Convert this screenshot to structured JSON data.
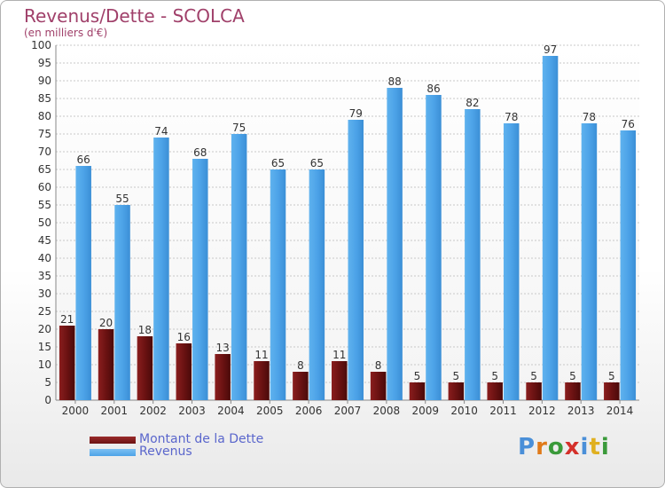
{
  "title": "Revenus/Dette - SCOLCA",
  "subtitle": "(en milliers d'€)",
  "logo_text": "Proxiti",
  "colors": {
    "dette": "#6b1212",
    "revenus": "#4da3e8",
    "axis_text": "#333333",
    "grid": "#c8c8c8"
  },
  "chart_data": {
    "type": "bar",
    "title": "Revenus/Dette - SCOLCA",
    "subtitle": "(en milliers d'€)",
    "categories": [
      "2000",
      "2001",
      "2002",
      "2003",
      "2004",
      "2005",
      "2006",
      "2007",
      "2008",
      "2009",
      "2010",
      "2011",
      "2012",
      "2013",
      "2014"
    ],
    "series": [
      {
        "name": "Montant de la Dette",
        "values": [
          21,
          20,
          18,
          16,
          13,
          11,
          8,
          11,
          8,
          5,
          5,
          5,
          5,
          5,
          5
        ]
      },
      {
        "name": "Revenus",
        "values": [
          66,
          55,
          74,
          68,
          75,
          65,
          65,
          79,
          88,
          86,
          82,
          78,
          97,
          78,
          76
        ]
      }
    ],
    "ylim": [
      0,
      100
    ],
    "yticks": [
      0,
      5,
      10,
      15,
      20,
      25,
      30,
      35,
      40,
      45,
      50,
      55,
      60,
      65,
      70,
      75,
      80,
      85,
      90,
      95,
      100
    ],
    "grid": true,
    "legend_position": "bottom-left"
  }
}
